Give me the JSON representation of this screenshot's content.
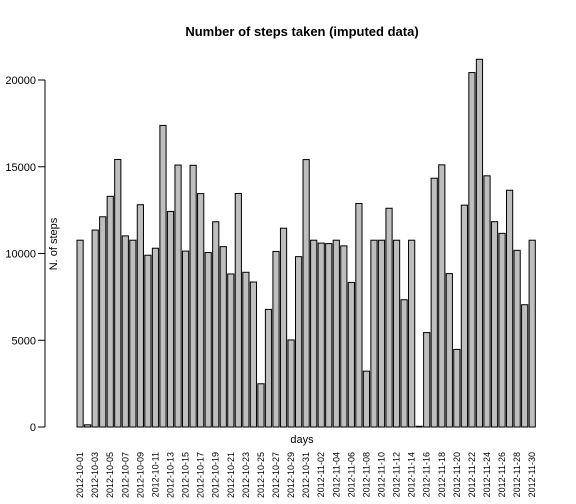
{
  "chart_data": {
    "type": "bar",
    "title": "Number of steps taken (imputed data)",
    "xlabel": "days",
    "ylabel": "N. of steps",
    "ylim": [
      0,
      21194
    ],
    "yticks": [
      0,
      5000,
      10000,
      15000,
      20000
    ],
    "bar_color": "#bebebe",
    "categories": [
      "2012-10-01",
      "2012-10-02",
      "2012-10-03",
      "2012-10-04",
      "2012-10-05",
      "2012-10-06",
      "2012-10-07",
      "2012-10-08",
      "2012-10-09",
      "2012-10-10",
      "2012-10-11",
      "2012-10-12",
      "2012-10-13",
      "2012-10-14",
      "2012-10-15",
      "2012-10-16",
      "2012-10-17",
      "2012-10-18",
      "2012-10-19",
      "2012-10-20",
      "2012-10-21",
      "2012-10-22",
      "2012-10-23",
      "2012-10-24",
      "2012-10-25",
      "2012-10-26",
      "2012-10-27",
      "2012-10-28",
      "2012-10-29",
      "2012-10-30",
      "2012-10-31",
      "2012-11-01",
      "2012-11-02",
      "2012-11-03",
      "2012-11-04",
      "2012-11-05",
      "2012-11-06",
      "2012-11-07",
      "2012-11-08",
      "2012-11-09",
      "2012-11-10",
      "2012-11-11",
      "2012-11-12",
      "2012-11-13",
      "2012-11-14",
      "2012-11-15",
      "2012-11-16",
      "2012-11-17",
      "2012-11-18",
      "2012-11-19",
      "2012-11-20",
      "2012-11-21",
      "2012-11-22",
      "2012-11-23",
      "2012-11-24",
      "2012-11-25",
      "2012-11-26",
      "2012-11-27",
      "2012-11-28",
      "2012-11-29",
      "2012-11-30"
    ],
    "values": [
      10766,
      126,
      11352,
      12116,
      13294,
      15420,
      11015,
      10766,
      12811,
      9900,
      10304,
      17382,
      12426,
      15098,
      10139,
      15084,
      13452,
      10056,
      11829,
      10395,
      8821,
      13460,
      8918,
      8355,
      2492,
      6778,
      10119,
      11458,
      5018,
      9819,
      15414,
      10766,
      10600,
      10571,
      10766,
      10439,
      8334,
      12883,
      3219,
      10766,
      10766,
      12608,
      10765,
      7336,
      10766,
      41,
      5441,
      14339,
      15110,
      8841,
      4472,
      12787,
      20427,
      21194,
      14478,
      11834,
      11162,
      13646,
      10183,
      7047,
      10766
    ],
    "xtick_labels_shown": [
      "2012-10-01",
      "2012-10-03",
      "2012-10-05",
      "2012-10-07",
      "2012-10-09",
      "2012-10-11",
      "2012-10-13",
      "2012-10-15",
      "2012-10-17",
      "2012-10-19",
      "2012-10-21",
      "2012-10-23",
      "2012-10-25",
      "2012-10-27",
      "2012-10-29",
      "2012-10-31",
      "2012-11-02",
      "2012-11-04",
      "2012-11-06",
      "2012-11-08",
      "2012-11-10",
      "2012-11-12",
      "2012-11-14",
      "2012-11-16",
      "2012-11-18",
      "2012-11-20",
      "2012-11-22",
      "2012-11-24",
      "2012-11-26",
      "2012-11-28",
      "2012-11-30"
    ]
  }
}
